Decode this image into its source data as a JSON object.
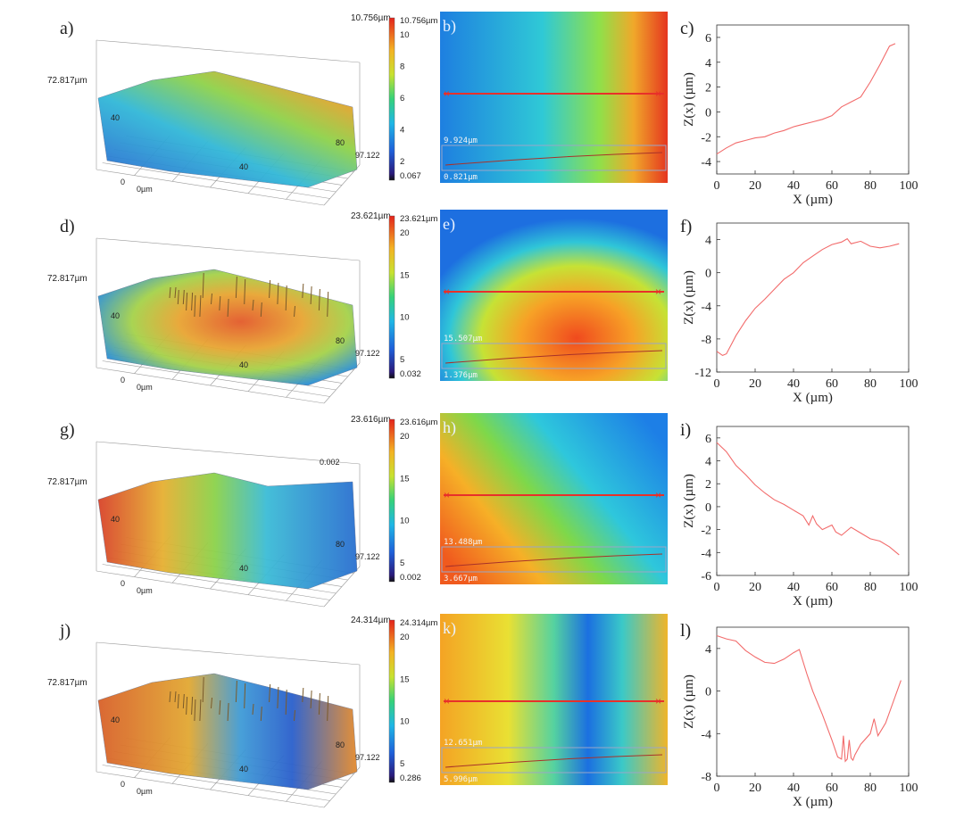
{
  "panel_letters": [
    "a)",
    "b)",
    "c)",
    "d)",
    "e)",
    "f)",
    "g)",
    "h)",
    "i)",
    "j)",
    "k)",
    "l)"
  ],
  "surface_axis_labels": {
    "y_max": "72.817µm",
    "y_mid": "40",
    "x_mid": "40",
    "x_tick": "80",
    "x_max": "97.122",
    "origin": "0",
    "origin_unit": "0µm"
  },
  "profile_axes": {
    "xlabel": "X (µm)",
    "ylabel": "Z(x) (µm)"
  },
  "colors": {
    "line": "#f26b6b",
    "map_marker": "#e8302a",
    "map_box": "#9aa6c8"
  },
  "rows": [
    {
      "surface": {
        "z_max_label": "10.756µm",
        "extra_label": ""
      },
      "colorbar": {
        "max_label": "10.756µm",
        "ticks": [
          "10",
          "8",
          "6",
          "4",
          "2"
        ],
        "min_label": "0.067"
      },
      "map": {
        "upper_label": "9.924µm",
        "lower_label": "0.821µm"
      },
      "chart_data": {
        "type": "line",
        "xlabel": "X (µm)",
        "ylabel": "Z(x) (µm)",
        "xlim": [
          0,
          100
        ],
        "ylim": [
          -5,
          7
        ],
        "xticks": [
          0,
          20,
          40,
          60,
          80,
          100
        ],
        "yticks": [
          -4,
          -2,
          0,
          2,
          4,
          6
        ],
        "x": [
          0,
          5,
          10,
          15,
          20,
          25,
          30,
          35,
          40,
          45,
          50,
          55,
          60,
          65,
          70,
          75,
          80,
          85,
          90,
          93
        ],
        "y": [
          -3.4,
          -2.9,
          -2.5,
          -2.3,
          -2.1,
          -2.0,
          -1.7,
          -1.5,
          -1.2,
          -1.0,
          -0.8,
          -0.6,
          -0.3,
          0.4,
          0.8,
          1.2,
          2.4,
          3.8,
          5.3,
          5.5
        ]
      }
    },
    {
      "surface": {
        "z_max_label": "23.621µm",
        "extra_label": ""
      },
      "colorbar": {
        "max_label": "23.621µm",
        "ticks": [
          "20",
          "15",
          "10",
          "5"
        ],
        "min_label": "0.032"
      },
      "map": {
        "upper_label": "15.507µm",
        "lower_label": "1.376µm"
      },
      "chart_data": {
        "type": "line",
        "xlabel": "X (µm)",
        "ylabel": "Z(x) (µm)",
        "xlim": [
          0,
          100
        ],
        "ylim": [
          -12,
          6
        ],
        "xticks": [
          0,
          20,
          40,
          60,
          80,
          100
        ],
        "yticks": [
          -12,
          -8,
          -4,
          0,
          4
        ],
        "x": [
          0,
          3,
          5,
          8,
          10,
          15,
          20,
          25,
          30,
          35,
          40,
          45,
          50,
          55,
          60,
          65,
          68,
          70,
          75,
          80,
          85,
          90,
          95
        ],
        "y": [
          -9.5,
          -10.0,
          -9.8,
          -8.5,
          -7.6,
          -5.8,
          -4.3,
          -3.2,
          -2.0,
          -0.8,
          0.0,
          1.2,
          2.0,
          2.8,
          3.4,
          3.7,
          4.1,
          3.5,
          3.8,
          3.2,
          3.0,
          3.2,
          3.5
        ]
      }
    },
    {
      "surface": {
        "z_max_label": "23.616µm",
        "extra_label": "0.002"
      },
      "colorbar": {
        "max_label": "23.616µm",
        "ticks": [
          "20",
          "15",
          "10",
          "5"
        ],
        "min_label": "0.002"
      },
      "map": {
        "upper_label": "13.488µm",
        "lower_label": "3.667µm"
      },
      "chart_data": {
        "type": "line",
        "xlabel": "X (µm)",
        "ylabel": "Z(x) (µm)",
        "xlim": [
          0,
          100
        ],
        "ylim": [
          -6,
          7
        ],
        "xticks": [
          0,
          20,
          40,
          60,
          80,
          100
        ],
        "yticks": [
          -6,
          -4,
          -2,
          0,
          2,
          4,
          6
        ],
        "x": [
          0,
          5,
          10,
          15,
          20,
          25,
          30,
          35,
          40,
          45,
          48,
          50,
          52,
          55,
          60,
          62,
          65,
          70,
          75,
          80,
          85,
          90,
          95
        ],
        "y": [
          5.6,
          4.8,
          3.6,
          2.8,
          1.9,
          1.2,
          0.6,
          0.2,
          -0.3,
          -0.8,
          -1.6,
          -0.8,
          -1.5,
          -2.0,
          -1.6,
          -2.2,
          -2.5,
          -1.8,
          -2.3,
          -2.8,
          -3.0,
          -3.5,
          -4.2
        ]
      }
    },
    {
      "surface": {
        "z_max_label": "24.314µm",
        "extra_label": ""
      },
      "colorbar": {
        "max_label": "24.314µm",
        "ticks": [
          "20",
          "15",
          "10",
          "5"
        ],
        "min_label": "0.286"
      },
      "map": {
        "upper_label": "12.651µm",
        "lower_label": "5.996µm"
      },
      "chart_data": {
        "type": "line",
        "xlabel": "X (µm)",
        "ylabel": "Z(x) (µm)",
        "xlim": [
          0,
          100
        ],
        "ylim": [
          -8,
          6
        ],
        "xticks": [
          0,
          20,
          40,
          60,
          80,
          100
        ],
        "yticks": [
          -8,
          -4,
          0,
          4
        ],
        "x": [
          0,
          5,
          10,
          15,
          20,
          25,
          30,
          35,
          40,
          43,
          47,
          50,
          55,
          60,
          63,
          65,
          66,
          67,
          68,
          69,
          70,
          71,
          72,
          75,
          80,
          82,
          84,
          88,
          92,
          96
        ],
        "y": [
          5.2,
          4.9,
          4.7,
          3.8,
          3.2,
          2.7,
          2.6,
          3.0,
          3.6,
          3.9,
          1.6,
          0.0,
          -2.2,
          -4.6,
          -6.2,
          -6.4,
          -4.2,
          -6.6,
          -6.4,
          -4.6,
          -6.3,
          -6.5,
          -6.0,
          -5.0,
          -4.0,
          -2.6,
          -4.2,
          -3.0,
          -1.0,
          1.0
        ]
      }
    }
  ]
}
